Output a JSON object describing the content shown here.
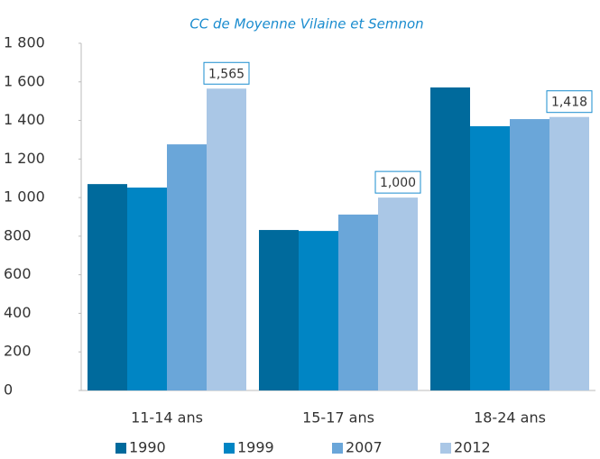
{
  "chart_data": {
    "type": "bar",
    "title": "CC de Moyenne Vilaine et Semnon",
    "categories": [
      "11-14 ans",
      "15-17 ans",
      "18-24 ans"
    ],
    "series": [
      {
        "name": "1990",
        "color": "#006a9c",
        "values": [
          1070,
          832,
          1571
        ]
      },
      {
        "name": "1999",
        "color": "#0085c4",
        "values": [
          1052,
          827,
          1370
        ]
      },
      {
        "name": "2007",
        "color": "#6aa6d9",
        "values": [
          1276,
          912,
          1407
        ]
      },
      {
        "name": "2012",
        "color": "#aac7e6",
        "values": [
          1565,
          1000,
          1418
        ],
        "value_labels": [
          "1,565",
          "1,000",
          "1,418"
        ]
      }
    ],
    "ylim": [
      0,
      1800
    ],
    "yticks": [
      0,
      200,
      400,
      600,
      800,
      {
        "value": 1000,
        "label": "1 000"
      },
      {
        "value": 1200,
        "label": "1 200"
      },
      {
        "value": 1400,
        "label": "1 400"
      },
      {
        "value": 1600,
        "label": "1 600"
      },
      {
        "value": 1800,
        "label": "1 800"
      }
    ],
    "grid": false
  }
}
